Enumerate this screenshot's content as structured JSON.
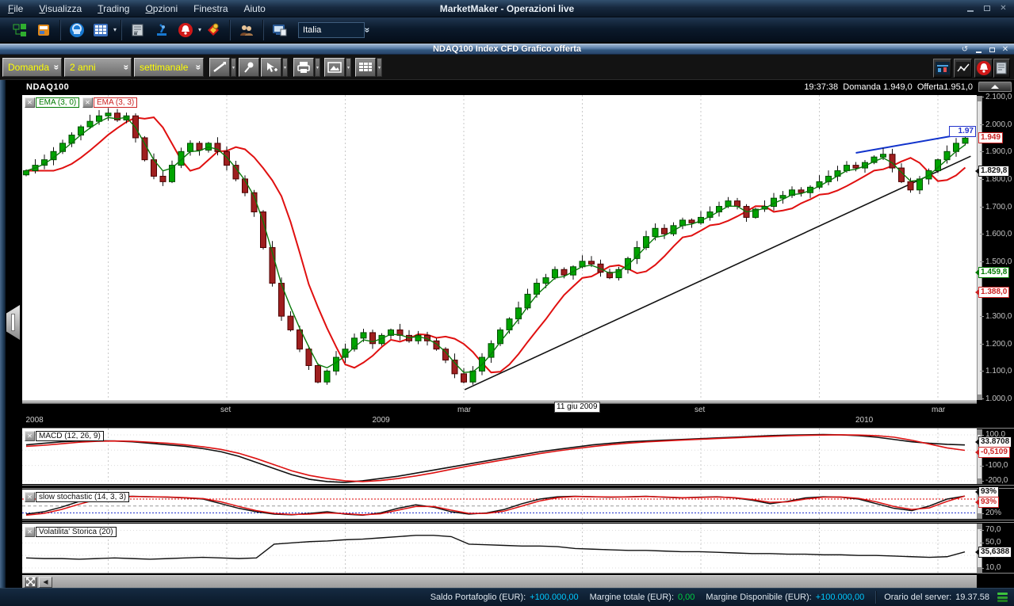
{
  "titlebar": {
    "title": "MarketMaker - Operazioni live",
    "menus": [
      {
        "label": "File",
        "u": 0
      },
      {
        "label": "Visualizza",
        "u": 0
      },
      {
        "label": "Trading",
        "u": 0
      },
      {
        "label": "Opzioni",
        "u": 0
      },
      {
        "label": "Finestra",
        "u": -1
      },
      {
        "label": "Aiuto",
        "u": -1
      }
    ]
  },
  "toolbar": {
    "country": "Italia",
    "icons": [
      "org-chart",
      "layout-window",
      "lock-sphere",
      "grid-pad",
      "news",
      "microscope",
      "alarm-bell",
      "tag",
      "contacts",
      "screen-share"
    ]
  },
  "chart_window": {
    "title": "NDAQ100 Index CFD Grafico offerta"
  },
  "chart_toolbar": {
    "price_type": "Domanda",
    "period": "2 anni",
    "timeframe": "settimanale",
    "right_icons": [
      "candle-chart",
      "line-chart",
      "alarm-bell",
      "news"
    ]
  },
  "chart": {
    "symbol": "NDAQ100",
    "time": "19:37:38",
    "bid_label": "Domanda",
    "bid": "1.949,0",
    "ask_label": "Offerta",
    "ask": "1.951,0",
    "legend": [
      {
        "label": "EMA (3, 0)",
        "color": "#007a00"
      },
      {
        "label": "EMA (3, 3)",
        "color": "#cc2222"
      }
    ],
    "y_ticks": [
      {
        "text": "2.100,0",
        "value": 2100
      },
      {
        "text": "2.000,0",
        "value": 2000
      },
      {
        "text": "1.900,0",
        "value": 1900
      },
      {
        "text": "1.800,0",
        "value": 1800
      },
      {
        "text": "1.700,0",
        "value": 1700
      },
      {
        "text": "1.600,0",
        "value": 1600
      },
      {
        "text": "1.500,0",
        "value": 1500
      },
      {
        "text": "1.300,0",
        "value": 1300
      },
      {
        "text": "1.200,0",
        "value": 1200
      },
      {
        "text": "1.100,0",
        "value": 1100
      },
      {
        "text": "1.000,0",
        "value": 1000
      }
    ],
    "markers": [
      {
        "text": "1.97",
        "value": 1970,
        "color": "#2233cc",
        "placement": "chart",
        "arrow": false
      },
      {
        "text": "1.949",
        "value": 1949,
        "color": "#cc2222",
        "placement": "axis",
        "arrow": false
      },
      {
        "text": "1.829,8",
        "value": 1829.8,
        "color": "#111111",
        "placement": "axis",
        "arrow": true
      },
      {
        "text": "1.459,8",
        "value": 1459.8,
        "color": "#007a00",
        "placement": "axis",
        "arrow": true
      },
      {
        "text": "1.388,0",
        "value": 1388,
        "color": "#cc2222",
        "placement": "axis",
        "arrow": true
      }
    ],
    "x_months": [
      {
        "text": "set",
        "week": 22
      },
      {
        "text": "mar",
        "week": 48
      },
      {
        "text": "set",
        "week": 74
      },
      {
        "text": "mar",
        "week": 100
      }
    ],
    "x_years": [
      {
        "text": "2008",
        "week": 1
      },
      {
        "text": "2009",
        "week": 39
      },
      {
        "text": "2010",
        "week": 92
      }
    ],
    "tooltip": "11 giu 2009"
  },
  "macd": {
    "legend": "MACD (12, 26, 9)",
    "y_ticks": [
      {
        "text": "100,0",
        "value": 100
      },
      {
        "text": "-100,0",
        "value": -100
      },
      {
        "text": "-200,0",
        "value": -200
      }
    ],
    "marker_main": "33.8708",
    "marker_signal": "-0,5109"
  },
  "stochastic": {
    "legend": "slow stochastic (14, 3, 3)",
    "y_ticks": [
      {
        "text": "20%",
        "value": 20
      }
    ],
    "marker_k": "93%",
    "marker_d": "93%"
  },
  "volatility": {
    "legend": "Volatilita' Storica (20)",
    "y_ticks": [
      {
        "text": "70,0",
        "value": 70
      },
      {
        "text": "50,0",
        "value": 50
      },
      {
        "text": "30,0",
        "value": 30
      },
      {
        "text": "10,0",
        "value": 10
      }
    ],
    "marker": "35,6388"
  },
  "statusbar": {
    "saldo_label": "Saldo Portafoglio (EUR):",
    "saldo_value": "+100.000,00",
    "margine_label": "Margine totale (EUR):",
    "margine_value": "0,00",
    "disponibile_label": "Margine Disponibile (EUR):",
    "disponibile_value": "+100.000,00",
    "server_label": "Orario del server:",
    "server_value": "19.37.58"
  },
  "colors": {
    "candle_up": "#00a400",
    "candle_up_border": "#004d00",
    "candle_down": "#9e1f1f",
    "candle_down_border": "#4d0000",
    "ema_fast": "#0a7a0a",
    "ema_slow": "#e01010",
    "trend_black": "#111111",
    "trend_blue": "#1133cc",
    "macd_line": "#111111",
    "macd_signal": "#dd1111",
    "stoch_k": "#111111",
    "stoch_d": "#dd1111",
    "band_upper": "#dd0000",
    "band_lower": "#2233cc",
    "band_mid": "#999999",
    "vol_line": "#111111",
    "accent_yellow": "#ffff00",
    "value_cyan": "#00c8ff",
    "value_green": "#00cc44"
  },
  "chart_data": {
    "type": "candlestick+indicators",
    "timeframe": "weekly",
    "weeks": 104,
    "gridline_weeks": [
      9,
      22,
      35,
      48,
      61,
      74,
      87,
      100
    ],
    "price": {
      "ylim": [
        1000,
        2100
      ],
      "first_open": 1815,
      "closes": [
        1830,
        1850,
        1870,
        1900,
        1930,
        1960,
        1990,
        2010,
        2030,
        2040,
        2015,
        2030,
        1950,
        1870,
        1810,
        1790,
        1850,
        1900,
        1930,
        1905,
        1930,
        1900,
        1850,
        1800,
        1750,
        1680,
        1550,
        1420,
        1300,
        1250,
        1180,
        1120,
        1060,
        1100,
        1150,
        1180,
        1220,
        1240,
        1200,
        1230,
        1250,
        1230,
        1210,
        1230,
        1210,
        1180,
        1140,
        1090,
        1060,
        1100,
        1150,
        1200,
        1250,
        1290,
        1330,
        1380,
        1420,
        1440,
        1470,
        1450,
        1480,
        1500,
        1490,
        1460,
        1440,
        1470,
        1510,
        1550,
        1590,
        1620,
        1600,
        1630,
        1650,
        1640,
        1660,
        1680,
        1700,
        1720,
        1700,
        1660,
        1690,
        1700,
        1730,
        1740,
        1760,
        1750,
        1770,
        1790,
        1810,
        1830,
        1850,
        1840,
        1860,
        1880,
        1890,
        1840,
        1790,
        1760,
        1800,
        1830,
        1870,
        1900,
        1930,
        1949
      ]
    },
    "overlays": {
      "ema_fast_period": 3,
      "ema_slow_period": 3,
      "ema_slow_displacement": 3
    },
    "trendlines": [
      {
        "name": "support-line",
        "color": "#111111",
        "w1": 48.1,
        "v1": 1032,
        "w2": 103.6,
        "v2": 1883
      },
      {
        "name": "resistance-line",
        "color": "#1133cc",
        "w1": 91,
        "v1": 1895,
        "w2": 104.3,
        "v2": 1972
      }
    ],
    "macd": {
      "ylim": [
        -219,
        141
      ],
      "line": [
        35,
        45,
        55,
        60,
        62,
        60,
        55,
        45,
        35,
        25,
        10,
        -10,
        -40,
        -80,
        -120,
        -160,
        -190,
        -205,
        -210,
        -200,
        -185,
        -170,
        -150,
        -130,
        -110,
        -90,
        -70,
        -50,
        -30,
        -10,
        5,
        20,
        35,
        45,
        55,
        60,
        65,
        70,
        75,
        80,
        85,
        90,
        95,
        98,
        100,
        102,
        100,
        95,
        85,
        70,
        55,
        45,
        38,
        34
      ],
      "signal": [
        25,
        32,
        42,
        52,
        58,
        60,
        58,
        52,
        45,
        35,
        22,
        5,
        -20,
        -55,
        -95,
        -135,
        -165,
        -185,
        -200,
        -205,
        -198,
        -185,
        -168,
        -148,
        -125,
        -103,
        -82,
        -62,
        -42,
        -22,
        -5,
        10,
        24,
        36,
        46,
        54,
        60,
        66,
        71,
        76,
        81,
        86,
        90,
        94,
        97,
        99,
        100,
        99,
        95,
        85,
        65,
        40,
        15,
        -1
      ]
    },
    "stochastic": {
      "ylim": [
        0,
        100
      ],
      "bands": [
        80,
        50,
        20
      ],
      "k": [
        15,
        25,
        45,
        70,
        85,
        90,
        92,
        90,
        88,
        85,
        80,
        60,
        40,
        25,
        15,
        12,
        18,
        25,
        15,
        10,
        20,
        40,
        55,
        45,
        25,
        15,
        20,
        35,
        60,
        80,
        90,
        92,
        90,
        88,
        90,
        92,
        88,
        85,
        88,
        90,
        85,
        75,
        60,
        70,
        85,
        90,
        88,
        80,
        60,
        40,
        30,
        50,
        80,
        93
      ],
      "d": [
        10,
        18,
        35,
        58,
        78,
        88,
        91,
        90,
        89,
        86,
        82,
        68,
        48,
        30,
        18,
        13,
        15,
        20,
        17,
        12,
        16,
        32,
        48,
        48,
        32,
        18,
        18,
        28,
        50,
        72,
        86,
        91,
        90,
        89,
        89,
        91,
        89,
        86,
        87,
        89,
        86,
        78,
        66,
        68,
        80,
        88,
        89,
        83,
        68,
        48,
        35,
        42,
        70,
        93
      ]
    },
    "volatility": {
      "ylim": [
        5,
        75
      ],
      "grid": [
        70,
        50,
        30,
        10
      ],
      "values": [
        26,
        25,
        25,
        24,
        25,
        26,
        25,
        24,
        25,
        26,
        27,
        26,
        25,
        26,
        48,
        50,
        52,
        53,
        55,
        56,
        58,
        60,
        62,
        62,
        60,
        48,
        47,
        46,
        45,
        45,
        44,
        41,
        40,
        39,
        38,
        38,
        37,
        36,
        36,
        35,
        34,
        33,
        33,
        32,
        32,
        31,
        31,
        30,
        30,
        29,
        28,
        27,
        28,
        35.6
      ]
    }
  }
}
